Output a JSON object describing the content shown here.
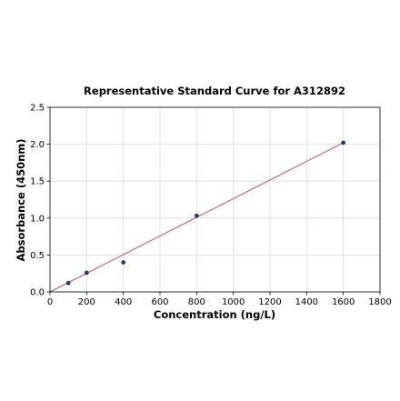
{
  "chart_data": {
    "type": "scatter",
    "title": "Representative Standard Curve for A312892",
    "xlabel": "Concentration (ng/L)",
    "ylabel": "Absorbance (450nm)",
    "xlim": [
      0,
      1800
    ],
    "ylim": [
      0,
      2.5
    ],
    "xticks": [
      0,
      200,
      400,
      600,
      800,
      1000,
      1200,
      1400,
      1600,
      1800
    ],
    "yticks": [
      0.0,
      0.5,
      1.0,
      1.5,
      2.0,
      2.5
    ],
    "xtick_labels": [
      "0",
      "200",
      "400",
      "600",
      "800",
      "1000",
      "1200",
      "1400",
      "1600",
      "1800"
    ],
    "ytick_labels": [
      "0.0",
      "0.5",
      "1.0",
      "1.5",
      "2.0",
      "2.5"
    ],
    "grid": true,
    "series": [
      {
        "kind": "points",
        "color": "#2e3b66",
        "x": [
          100,
          200,
          400,
          800,
          1600
        ],
        "y": [
          0.12,
          0.26,
          0.4,
          1.03,
          2.02
        ]
      },
      {
        "kind": "fit-line",
        "color": "#c0506e",
        "x": [
          0,
          1600
        ],
        "y": [
          0.0,
          2.02
        ]
      }
    ]
  }
}
